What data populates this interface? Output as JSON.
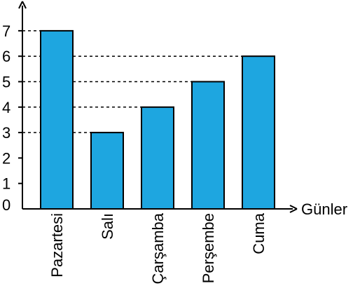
{
  "chart_data": {
    "type": "bar",
    "categories": [
      "Pazartesi",
      "Salı",
      "Çarşamba",
      "Perşembe",
      "Cuma"
    ],
    "values": [
      7,
      3,
      4,
      5,
      6
    ],
    "y_ticks": [
      "0",
      "1",
      "2",
      "3",
      "4",
      "5",
      "6",
      "7"
    ],
    "ylim": [
      0,
      7
    ],
    "xlabel": "Günler",
    "ylabel": "",
    "title": "",
    "grid": false,
    "dashed_value_guides": true,
    "bar_color": "#1EA6E0",
    "bar_stroke": "#000000"
  }
}
